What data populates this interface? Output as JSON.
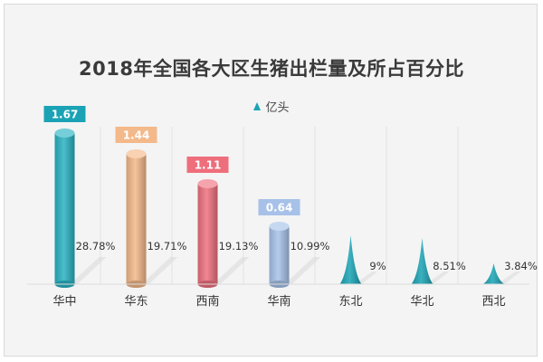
{
  "chart_data": {
    "type": "bar",
    "title": "2018年全国各大区生猪出栏量及所占百分比",
    "legend": {
      "label": "亿头",
      "position": "top"
    },
    "categories": [
      "华中",
      "华东",
      "西南",
      "华南",
      "东北",
      "华北",
      "西北"
    ],
    "series": [
      {
        "name": "亿头",
        "values": [
          1.67,
          1.44,
          1.11,
          0.64,
          null,
          null,
          null
        ],
        "value_labels": [
          "1.67",
          "1.44",
          "1.11",
          "0.64",
          "",
          "",
          ""
        ]
      }
    ],
    "percentages": [
      "28.78%",
      "19.71%",
      "19.13%",
      "10.99%",
      "9%",
      "8.51%",
      "3.84%"
    ],
    "percent_values": [
      28.78,
      19.71,
      19.13,
      10.99,
      9,
      8.51,
      3.84
    ],
    "bar_colors": [
      "#2bb3c3",
      "#f4b98a",
      "#ef7280",
      "#a8c3ea",
      "#1aa3b5",
      "#1aa3b5",
      "#1aa3b5"
    ],
    "label_colors": [
      "#1aa3b5",
      "#f4b98a",
      "#ee6e7c",
      "#a7c1e8"
    ],
    "ylim": [
      0,
      1.8
    ],
    "grid": "vertical-separators",
    "xlabel": "",
    "ylabel": ""
  }
}
